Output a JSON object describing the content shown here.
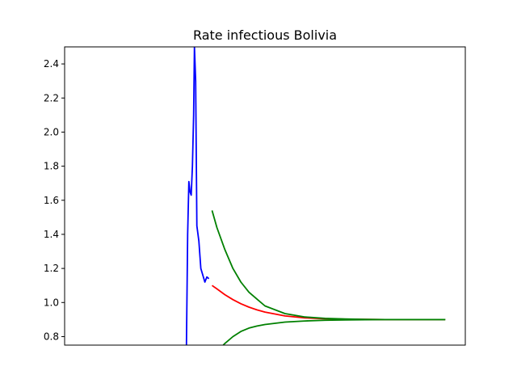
{
  "chart_data": {
    "type": "line",
    "title": "Rate infectious Bolivia",
    "xlabel": "",
    "ylabel": "",
    "xlim": [
      0,
      100
    ],
    "ylim": [
      0.75,
      2.5
    ],
    "yticks": [
      0.8,
      1.0,
      1.2,
      1.4,
      1.6,
      1.8,
      2.0,
      2.2,
      2.4
    ],
    "ytick_labels": [
      "0.8",
      "1.0",
      "1.2",
      "1.4",
      "1.6",
      "1.8",
      "2.0",
      "2.2",
      "2.4"
    ],
    "xticks_visible": false,
    "grid": false,
    "legend": "none",
    "series": [
      {
        "color": "#0000ff",
        "x": [
          30.4,
          30.7,
          31.0,
          31.3,
          31.6,
          31.9,
          32.2,
          32.4,
          32.7,
          33.0,
          33.5,
          34.0,
          34.5,
          35.0,
          35.5,
          36.0
        ],
        "y": [
          0.75,
          1.4,
          1.71,
          1.65,
          1.63,
          1.8,
          2.1,
          2.5,
          2.3,
          1.45,
          1.36,
          1.2,
          1.16,
          1.12,
          1.15,
          1.14
        ]
      },
      {
        "color": "#ff0000",
        "x": [
          36.8,
          38,
          40,
          42,
          44,
          46,
          48,
          50,
          55,
          60,
          65,
          70,
          75,
          80,
          85,
          90,
          95
        ],
        "y": [
          1.1,
          1.08,
          1.046,
          1.017,
          0.993,
          0.973,
          0.957,
          0.944,
          0.921,
          0.91,
          0.905,
          0.902,
          0.901,
          0.9,
          0.9,
          0.9,
          0.9
        ]
      },
      {
        "color": "#008000",
        "x": [
          36.8,
          38,
          40,
          42,
          44,
          46,
          48,
          50,
          55,
          60,
          65,
          70,
          75,
          80,
          85,
          90,
          95
        ],
        "y": [
          1.54,
          1.44,
          1.31,
          1.2,
          1.12,
          1.06,
          1.02,
          0.98,
          0.935,
          0.915,
          0.907,
          0.903,
          0.901,
          0.9,
          0.9,
          0.9,
          0.9
        ]
      },
      {
        "color": "#008000",
        "x": [
          39.6,
          40,
          42,
          44,
          46,
          48,
          50,
          55,
          60,
          65,
          70,
          75,
          80,
          85,
          90,
          95
        ],
        "y": [
          0.75,
          0.76,
          0.8,
          0.83,
          0.85,
          0.862,
          0.871,
          0.885,
          0.892,
          0.896,
          0.898,
          0.899,
          0.9,
          0.9,
          0.9,
          0.9
        ]
      }
    ]
  }
}
